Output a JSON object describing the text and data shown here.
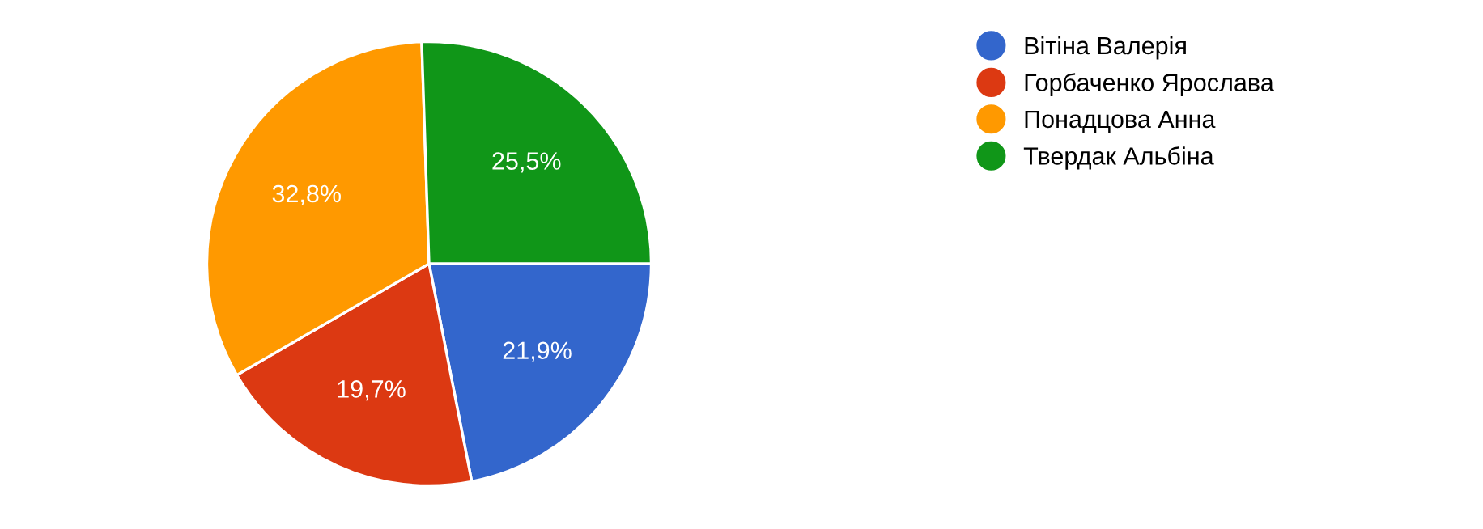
{
  "chart_data": {
    "type": "pie",
    "categories": [
      "Вітіна Валерія",
      "Горбаченко Ярослава",
      "Понадцова Анна",
      "Твердак Альбіна"
    ],
    "values": [
      21.9,
      19.7,
      32.8,
      25.5
    ],
    "colors": [
      "#3366cc",
      "#dc3912",
      "#ff9900",
      "#109618"
    ],
    "value_labels": [
      "21,9%",
      "19,7%",
      "32,8%",
      "25,5%"
    ],
    "legend": "top right"
  }
}
